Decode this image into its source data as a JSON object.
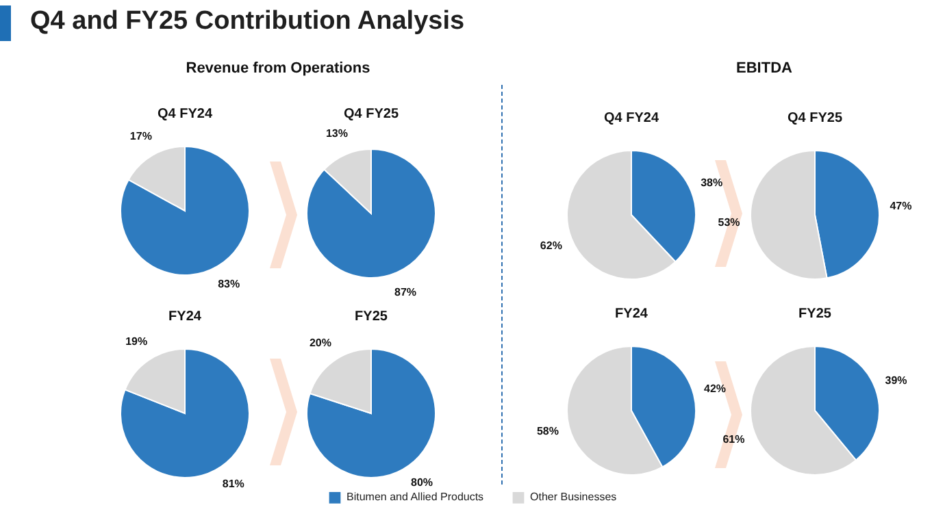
{
  "chart_data": [
    {
      "type": "pie",
      "title": "Q4 FY24",
      "annotations": [
        "Q4 and FY25 Contribution Analysis",
        "Revenue from Operations"
      ],
      "legend": "bottom",
      "categories": [
        "Bitumen and Allied Products",
        "Other Businesses"
      ],
      "values": [
        83,
        17
      ],
      "value_labels": [
        "83%",
        "17%"
      ],
      "colors": [
        "#2e7bbf",
        "#d9d9d9"
      ]
    },
    {
      "type": "pie",
      "title": "Q4 FY25",
      "categories": [
        null,
        null
      ],
      "values": [
        87,
        13
      ],
      "value_labels": [
        "87%",
        "13%"
      ],
      "colors": [
        "#2e7bbf",
        "#d9d9d9"
      ]
    },
    {
      "type": "pie",
      "title": "FY24",
      "categories": [
        null,
        null
      ],
      "values": [
        81,
        19
      ],
      "value_labels": [
        "81%",
        "19%"
      ],
      "colors": [
        "#2e7bbf",
        "#d9d9d9"
      ]
    },
    {
      "type": "pie",
      "title": "FY25",
      "categories": [
        null,
        null
      ],
      "values": [
        80,
        20
      ],
      "value_labels": [
        "80%",
        "20%"
      ],
      "colors": [
        "#2e7bbf",
        "#d9d9d9"
      ]
    },
    {
      "type": "pie",
      "title": "Q4 FY24",
      "annotations": [
        "EBITDA"
      ],
      "categories": [
        null,
        null
      ],
      "values": [
        38,
        62
      ],
      "value_labels": [
        "38%",
        "62%"
      ],
      "colors": [
        "#2e7bbf",
        "#d9d9d9"
      ]
    },
    {
      "type": "pie",
      "title": "Q4 FY25",
      "categories": [
        null,
        null
      ],
      "values": [
        47,
        53
      ],
      "value_labels": [
        "47%",
        "53%"
      ],
      "colors": [
        "#2e7bbf",
        "#d9d9d9"
      ]
    },
    {
      "type": "pie",
      "title": "FY24",
      "categories": [
        null,
        null
      ],
      "values": [
        42,
        58
      ],
      "value_labels": [
        "42%",
        "58%"
      ],
      "colors": [
        "#2e7bbf",
        "#d9d9d9"
      ]
    },
    {
      "type": "pie",
      "title": "FY25",
      "categories": [
        null,
        null
      ],
      "values": [
        39,
        61
      ],
      "value_labels": [
        "39%",
        "61%"
      ],
      "colors": [
        "#2e7bbf",
        "#d9d9d9"
      ]
    }
  ]
}
